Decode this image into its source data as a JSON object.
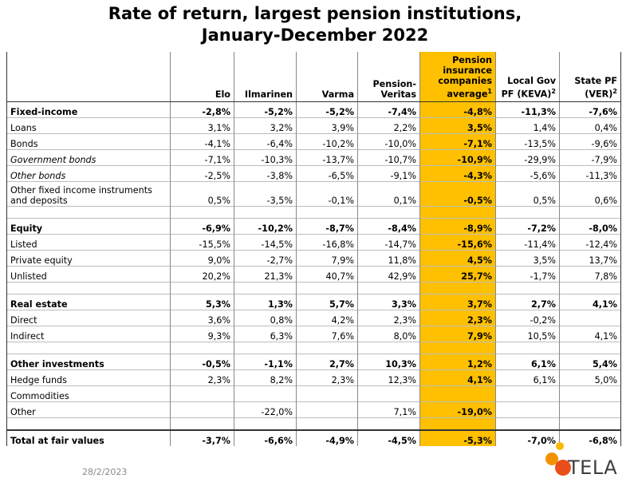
{
  "title": {
    "line1": "Rate of return, largest pension institutions,",
    "line2": "January-December 2022"
  },
  "table": {
    "columns": [
      {
        "label": "Elo",
        "sup": ""
      },
      {
        "label": "Ilmarinen",
        "sup": ""
      },
      {
        "label": "Varma",
        "sup": ""
      },
      {
        "label": "Pension-Veritas",
        "sup": ""
      },
      {
        "label": "Pension insurance companies average",
        "sup": "1"
      },
      {
        "label": "Local Gov PF (KEVA)",
        "sup": "2"
      },
      {
        "label": "State PF (VER)",
        "sup": "2"
      }
    ],
    "rows": [
      {
        "label": "Fixed-income",
        "style": "bold",
        "values": [
          "-2,8%",
          "-5,2%",
          "-5,2%",
          "-7,4%",
          "-4,8%",
          "-11,3%",
          "-7,6%"
        ]
      },
      {
        "label": "Loans",
        "style": "",
        "values": [
          "3,1%",
          "3,2%",
          "3,9%",
          "2,2%",
          "3,5%",
          "1,4%",
          "0,4%"
        ]
      },
      {
        "label": "Bonds",
        "style": "",
        "values": [
          "-4,1%",
          "-6,4%",
          "-10,2%",
          "-10,0%",
          "-7,1%",
          "-13,5%",
          "-9,6%"
        ]
      },
      {
        "label": "Government bonds",
        "style": "italic",
        "values": [
          "-7,1%",
          "-10,3%",
          "-13,7%",
          "-10,7%",
          "-10,9%",
          "-29,9%",
          "-7,9%"
        ]
      },
      {
        "label": "Other bonds",
        "style": "italic",
        "values": [
          "-2,5%",
          "-3,8%",
          "-6,5%",
          "-9,1%",
          "-4,3%",
          "-5,6%",
          "-11,3%"
        ]
      },
      {
        "label": "Other fixed income instruments and deposits",
        "style": "tall",
        "values": [
          "0,5%",
          "-3,5%",
          "-0,1%",
          "0,1%",
          "-0,5%",
          "0,5%",
          "0,6%"
        ]
      },
      {
        "label": "",
        "style": "spacer",
        "values": [
          "",
          "",
          "",
          "",
          "",
          "",
          ""
        ]
      },
      {
        "label": "Equity",
        "style": "bold",
        "values": [
          "-6,9%",
          "-10,2%",
          "-8,7%",
          "-8,4%",
          "-8,9%",
          "-7,2%",
          "-8,0%"
        ]
      },
      {
        "label": "Listed",
        "style": "",
        "values": [
          "-15,5%",
          "-14,5%",
          "-16,8%",
          "-14,7%",
          "-15,6%",
          "-11,4%",
          "-12,4%"
        ]
      },
      {
        "label": "Private equity",
        "style": "",
        "values": [
          "9,0%",
          "-2,7%",
          "7,9%",
          "11,8%",
          "4,5%",
          "3,5%",
          "13,7%"
        ]
      },
      {
        "label": "Unlisted",
        "style": "",
        "values": [
          "20,2%",
          "21,3%",
          "40,7%",
          "42,9%",
          "25,7%",
          "-1,7%",
          "7,8%"
        ]
      },
      {
        "label": "",
        "style": "spacer",
        "values": [
          "",
          "",
          "",
          "",
          "",
          "",
          ""
        ]
      },
      {
        "label": "Real estate",
        "style": "bold",
        "values": [
          "5,3%",
          "1,3%",
          "5,7%",
          "3,3%",
          "3,7%",
          "2,7%",
          "4,1%"
        ]
      },
      {
        "label": "Direct",
        "style": "",
        "values": [
          "3,6%",
          "0,8%",
          "4,2%",
          "2,3%",
          "2,3%",
          "-0,2%",
          ""
        ]
      },
      {
        "label": "Indirect",
        "style": "",
        "values": [
          "9,3%",
          "6,3%",
          "7,6%",
          "8,0%",
          "7,9%",
          "10,5%",
          "4,1%"
        ]
      },
      {
        "label": "",
        "style": "spacer",
        "values": [
          "",
          "",
          "",
          "",
          "",
          "",
          ""
        ]
      },
      {
        "label": "Other investments",
        "style": "bold",
        "values": [
          "-0,5%",
          "-1,1%",
          "2,7%",
          "10,3%",
          "1,2%",
          "6,1%",
          "5,4%"
        ]
      },
      {
        "label": "Hedge funds",
        "style": "",
        "values": [
          "2,3%",
          "8,2%",
          "2,3%",
          "12,3%",
          "4,1%",
          "6,1%",
          "5,0%"
        ]
      },
      {
        "label": "Commodities",
        "style": "",
        "values": [
          "",
          "",
          "",
          "",
          "",
          "",
          ""
        ]
      },
      {
        "label": "Other",
        "style": "",
        "values": [
          "",
          "-22,0%",
          "",
          "7,1%",
          "-19,0%",
          "",
          ""
        ]
      },
      {
        "label": "",
        "style": "spacer",
        "values": [
          "",
          "",
          "",
          "",
          "",
          "",
          ""
        ]
      },
      {
        "label": "Total at fair values",
        "style": "total",
        "values": [
          "-3,7%",
          "-6,6%",
          "-4,9%",
          "-4,5%",
          "-5,3%",
          "-7,0%",
          "-6,8%"
        ]
      }
    ]
  },
  "footer": {
    "date": "28/2/2023",
    "logo_text": "TELA",
    "logo_colors": [
      "#e94e1b",
      "#f39200",
      "#fbb900"
    ]
  }
}
